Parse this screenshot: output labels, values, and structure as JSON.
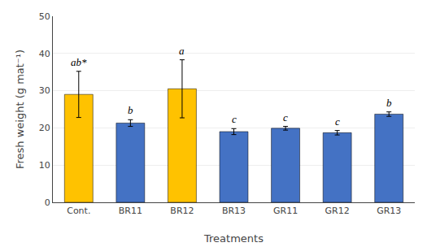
{
  "chart_data": {
    "type": "bar",
    "categories": [
      "Cont.",
      "BR11",
      "BR12",
      "BR13",
      "GR11",
      "GR12",
      "GR13"
    ],
    "values": [
      29.0,
      21.3,
      30.5,
      19.0,
      19.9,
      18.7,
      23.7
    ],
    "errors": [
      6.2,
      0.9,
      7.8,
      0.8,
      0.5,
      0.6,
      0.6
    ],
    "colors": [
      "#FFC200",
      "#4472C4",
      "#FFC200",
      "#4472C4",
      "#4472C4",
      "#4472C4",
      "#4472C4"
    ],
    "significance_labels": [
      "ab*",
      "b",
      "a",
      "c",
      "c",
      "c",
      "b"
    ],
    "xlabel": "Treatments",
    "ylabel": "Fresh weight (g mat⁻¹)",
    "ylim": [
      0,
      50
    ],
    "yticks": [
      0,
      10,
      20,
      30,
      40,
      50
    ],
    "grid": true
  }
}
